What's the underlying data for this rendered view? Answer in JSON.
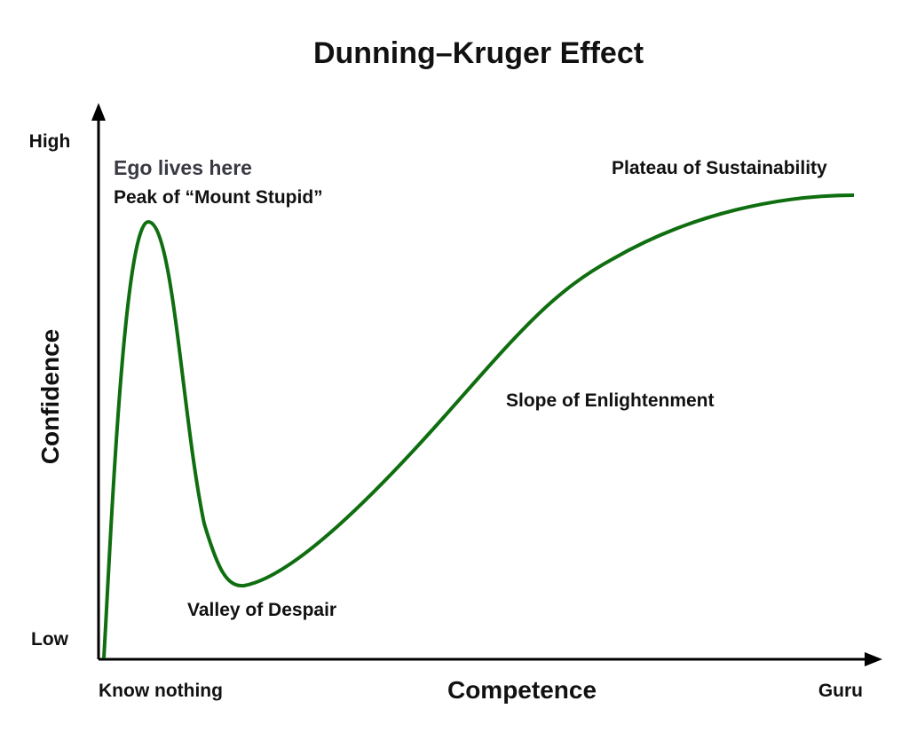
{
  "title": "Dunning–Kruger Effect",
  "y_axis": {
    "label": "Confidence",
    "high": "High",
    "low": "Low"
  },
  "x_axis": {
    "label": "Competence",
    "low": "Know nothing",
    "high": "Guru"
  },
  "annotations": {
    "ego": "Ego lives here",
    "peak": "Peak of “Mount Stupid”",
    "valley": "Valley of Despair",
    "slope": "Slope of Enlightenment",
    "plateau": "Plateau of Sustainability"
  }
}
